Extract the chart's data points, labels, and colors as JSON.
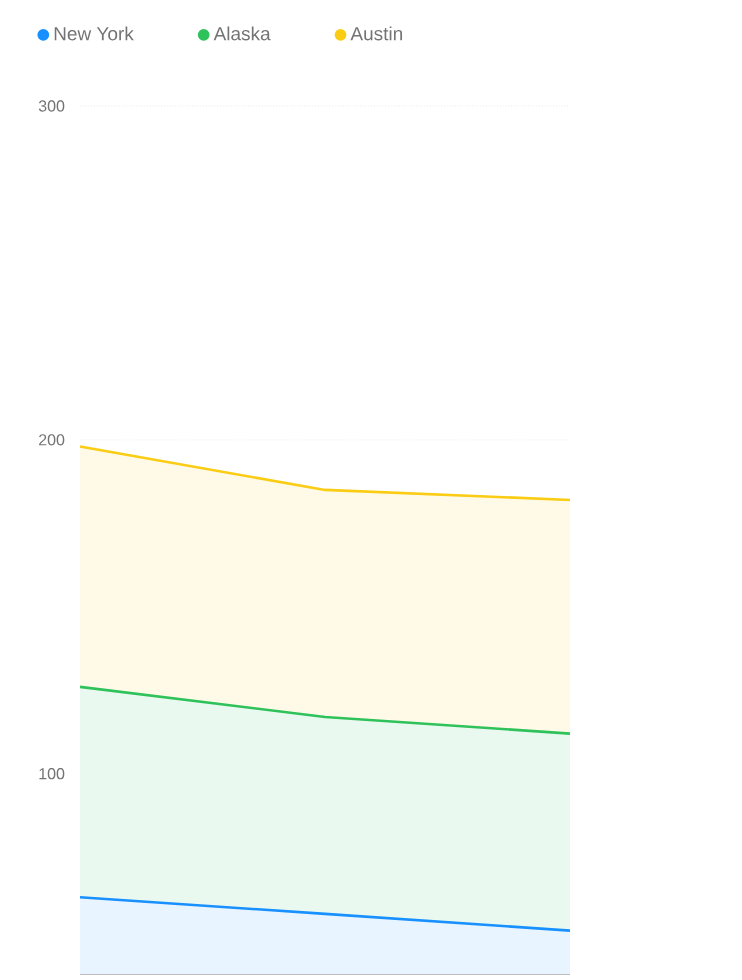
{
  "chart_data": {
    "type": "area",
    "stacked": true,
    "categories": [
      null,
      null,
      null
    ],
    "series": [
      {
        "name": "New York",
        "color": "#1890ff",
        "values": [
          63,
          58,
          53
        ]
      },
      {
        "name": "Alaska",
        "color": "#2fc25b",
        "values": [
          63,
          59,
          59
        ]
      },
      {
        "name": "Austin",
        "color": "#facc14",
        "values": [
          72,
          68,
          70
        ]
      }
    ],
    "ylim": [
      40,
      300
    ],
    "yticks": [
      100,
      200,
      300
    ],
    "grid": "y",
    "legend": "top left"
  }
}
